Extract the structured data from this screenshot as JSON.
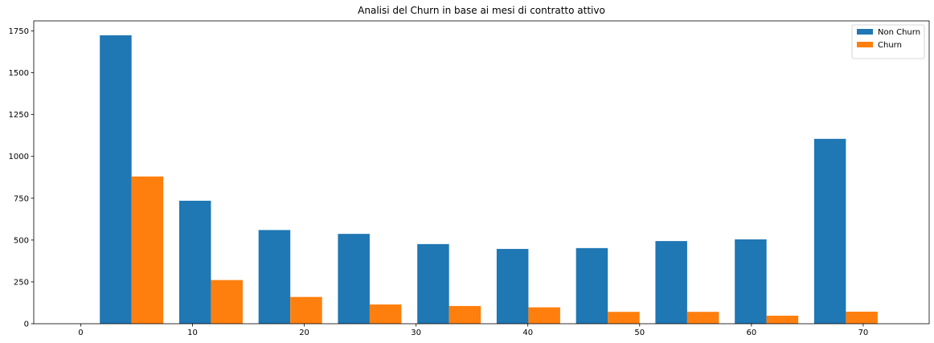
{
  "chart_data": {
    "type": "bar",
    "title": "Analisi del Churn in base ai mesi di contratto attivo",
    "xlabel": "",
    "ylabel": "",
    "xlim": [
      -4.2,
      75.9
    ],
    "ylim": [
      0,
      1810
    ],
    "xticks": [
      0,
      10,
      20,
      30,
      40,
      50,
      60,
      70
    ],
    "yticks": [
      0,
      250,
      500,
      750,
      1000,
      1250,
      1500,
      1750
    ],
    "bin_edges": [
      1,
      8.1,
      15.2,
      22.3,
      29.4,
      36.5,
      43.6,
      50.7,
      57.8,
      64.9,
      72
    ],
    "legend_position": "top-right",
    "grid": false,
    "series": [
      {
        "name": "Non Churn",
        "color": "#1f77b4",
        "values": [
          1724,
          735,
          560,
          537,
          476,
          447,
          452,
          494,
          504,
          1105
        ]
      },
      {
        "name": "Churn",
        "color": "#ff7f0e",
        "values": [
          880,
          261,
          160,
          115,
          106,
          98,
          71,
          71,
          48,
          72
        ]
      }
    ]
  }
}
